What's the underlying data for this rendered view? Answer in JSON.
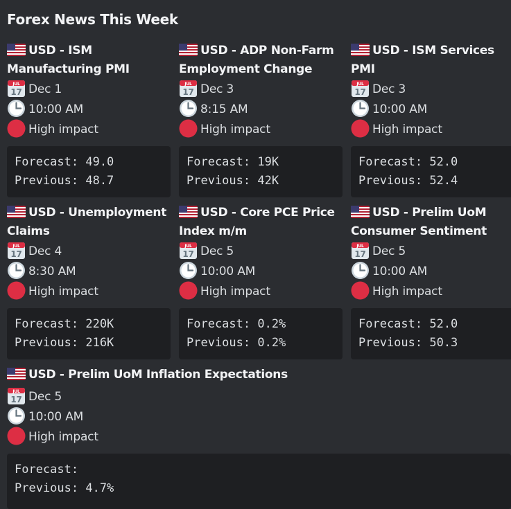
{
  "heading": "Forex News This Week",
  "events": [
    {
      "title": "USD - ISM Manufacturing PMI",
      "date": "Dec 1",
      "time": "10:00 AM",
      "impact": "High impact",
      "forecast_line": "Forecast: 49.0",
      "previous_line": "Previous: 48.7"
    },
    {
      "title": "USD - ADP Non-Farm Employment Change",
      "date": "Dec 3",
      "time": "8:15 AM",
      "impact": "High impact",
      "forecast_line": "Forecast: 19K",
      "previous_line": "Previous: 42K"
    },
    {
      "title": "USD - ISM Services PMI",
      "date": "Dec 3",
      "time": "10:00 AM",
      "impact": "High impact",
      "forecast_line": "Forecast: 52.0",
      "previous_line": "Previous: 52.4"
    },
    {
      "title": "USD - Unemployment Claims",
      "date": "Dec 4",
      "time": "8:30 AM",
      "impact": "High impact",
      "forecast_line": "Forecast: 220K",
      "previous_line": "Previous: 216K"
    },
    {
      "title": "USD - Core PCE Price Index m/m",
      "date": "Dec 5",
      "time": "10:00 AM",
      "impact": "High impact",
      "forecast_line": "Forecast: 0.2%",
      "previous_line": "Previous: 0.2%"
    },
    {
      "title": "USD - Prelim UoM Consumer Sentiment",
      "date": "Dec 5",
      "time": "10:00 AM",
      "impact": "High impact",
      "forecast_line": "Forecast: 52.0",
      "previous_line": "Previous: 50.3"
    },
    {
      "title": "USD - Prelim UoM Inflation Expectations",
      "date": "Dec 5",
      "time": "10:00 AM",
      "impact": "High impact",
      "forecast_line": "Forecast:",
      "previous_line": "Previous: 4.7%"
    }
  ],
  "icons": {
    "flag": "us-flag-icon",
    "date": "calendar-icon",
    "time": "clock-icon",
    "impact": "red-circle-icon"
  },
  "colors": {
    "background": "#2b2d31",
    "codeblock": "#1e1f22",
    "impact_red": "#dd2e44"
  },
  "calendar_icon_text": {
    "month": "JUL",
    "day": "17"
  }
}
